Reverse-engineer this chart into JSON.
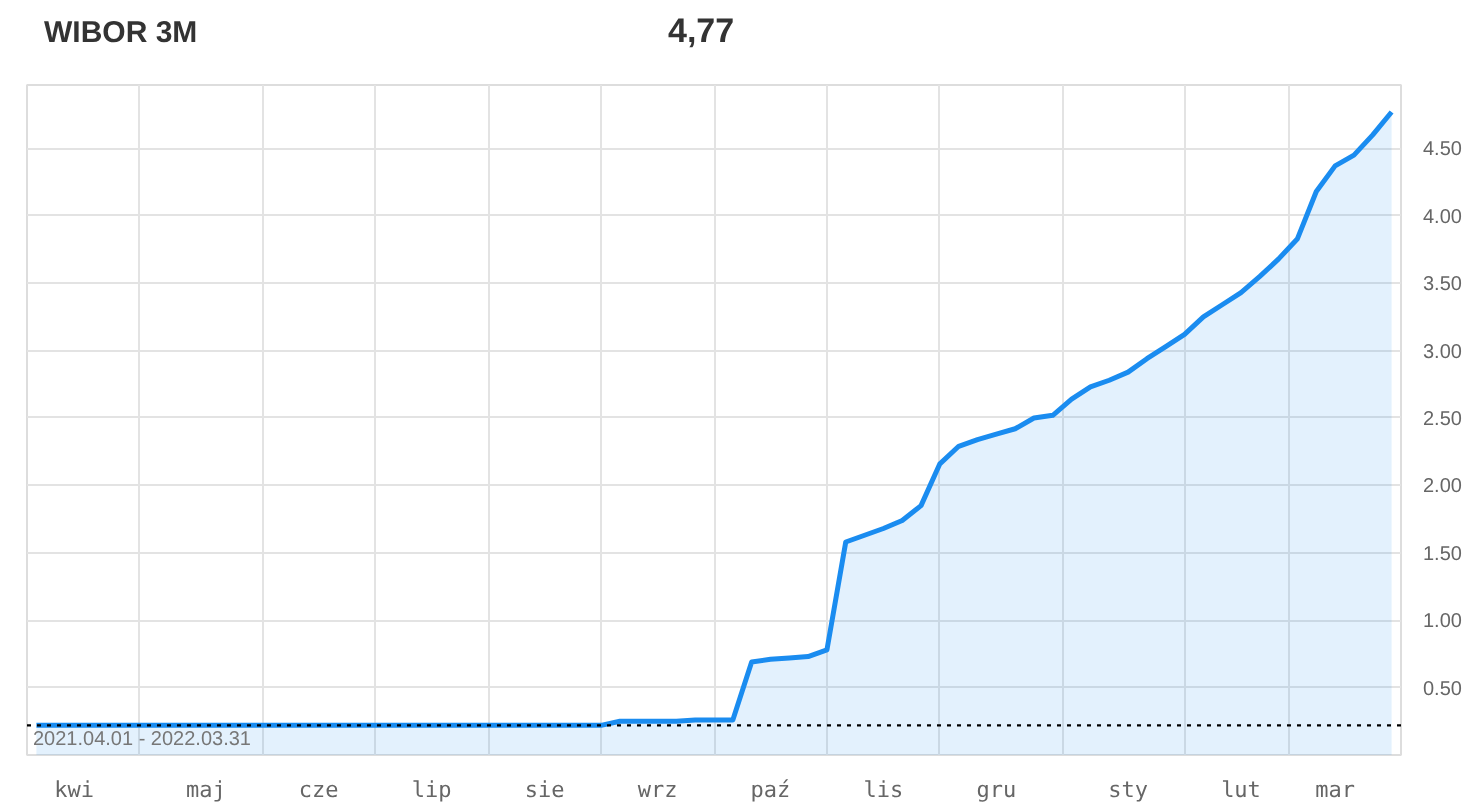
{
  "chart_data": {
    "type": "area",
    "title": "WIBOR 3M",
    "subtitle": "4,77",
    "categories": [
      null,
      null,
      "kwi",
      null,
      null,
      null,
      null,
      null,
      null,
      "maj",
      null,
      null,
      null,
      null,
      null,
      "cze",
      null,
      null,
      null,
      null,
      null,
      "lip",
      null,
      null,
      null,
      null,
      null,
      "sie",
      null,
      null,
      null,
      null,
      null,
      "wrz",
      null,
      null,
      null,
      null,
      null,
      "paź",
      null,
      null,
      null,
      null,
      null,
      "lis",
      null,
      null,
      null,
      null,
      null,
      "gru",
      null,
      null,
      null,
      null,
      null,
      null,
      "sty",
      null,
      null,
      null,
      null,
      null,
      "lut",
      null,
      null,
      null,
      null,
      "mar",
      null,
      null,
      null
    ],
    "series": [
      {
        "color": "#1a8cf0",
        "values": [
          0.22,
          0.22,
          0.22,
          0.22,
          0.22,
          0.22,
          0.22,
          0.22,
          0.22,
          0.22,
          0.22,
          0.22,
          0.22,
          0.22,
          0.22,
          0.22,
          0.22,
          0.22,
          0.22,
          0.22,
          0.22,
          0.22,
          0.22,
          0.22,
          0.22,
          0.22,
          0.22,
          0.22,
          0.22,
          0.22,
          0.22,
          0.25,
          0.25,
          0.25,
          0.25,
          0.26,
          0.26,
          0.26,
          0.69,
          0.71,
          0.72,
          0.73,
          0.78,
          1.58,
          1.63,
          1.68,
          1.74,
          1.85,
          2.16,
          2.29,
          2.34,
          2.38,
          2.42,
          2.5,
          2.52,
          2.64,
          2.73,
          2.78,
          2.84,
          2.94,
          3.03,
          3.12,
          3.25,
          3.34,
          3.43,
          3.55,
          3.68,
          3.83,
          4.18,
          4.37,
          4.45,
          4.6,
          4.77
        ]
      }
    ],
    "ylim": [
      0,
      4.97
    ],
    "yticks": [
      {
        "value": 0.5,
        "label": "0.50"
      },
      {
        "value": 1,
        "label": "1.00"
      },
      {
        "value": 1.5,
        "label": "1.50"
      },
      {
        "value": 2,
        "label": "2.00"
      },
      {
        "value": 2.5,
        "label": "2.50"
      },
      {
        "value": 3,
        "label": "3.00"
      },
      {
        "value": 3.5,
        "label": "3.50"
      },
      {
        "value": 4,
        "label": "4.00"
      },
      {
        "value": 4.5,
        "label": "4.50"
      }
    ],
    "ref_lines": [
      {
        "axis": "y",
        "value": 0.22,
        "color": "#000000",
        "line_style": "dotted"
      }
    ],
    "annotations": [
      "2021.04.01 - 2022.03.31"
    ],
    "grid": true,
    "line_style": "solid"
  }
}
